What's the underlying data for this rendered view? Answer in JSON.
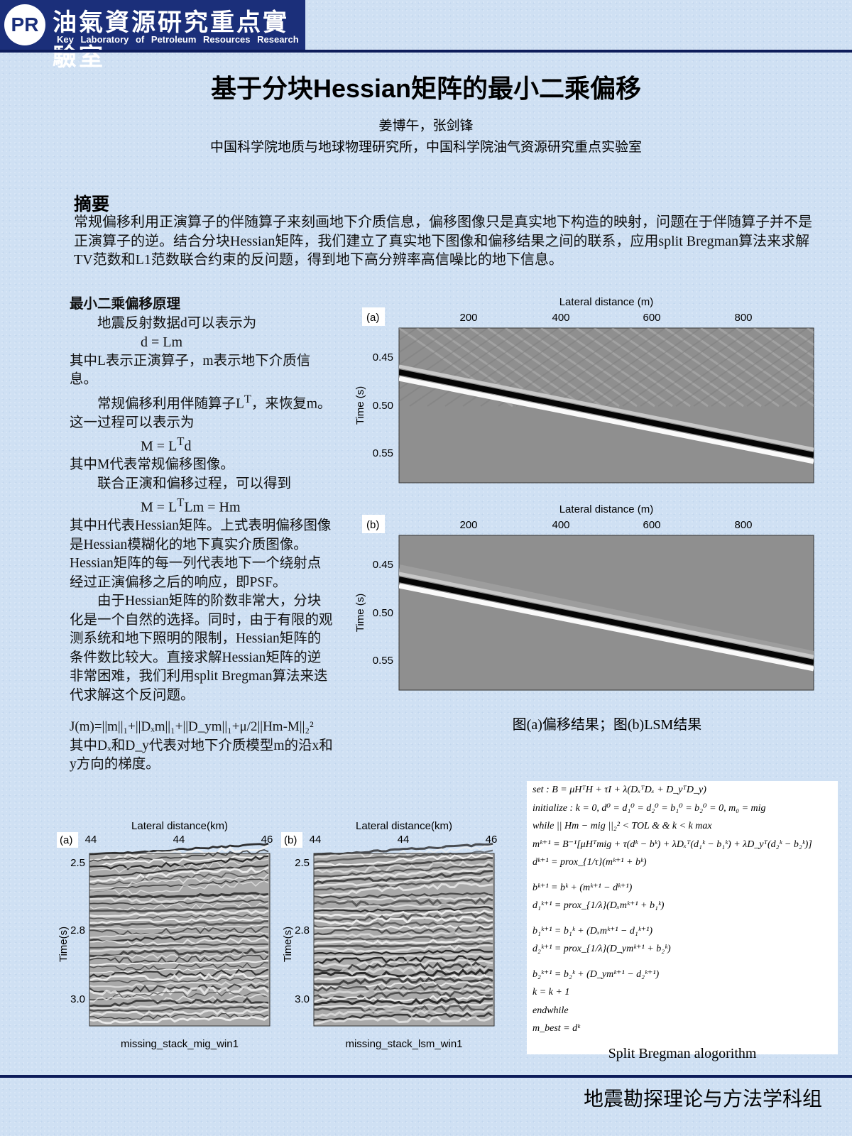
{
  "header": {
    "logo": "PR",
    "lab_cn": "油氣資源研究重点實驗室",
    "lab_en": "Key Laboratory of Petroleum Resources Research"
  },
  "title": "基于分块Hessian矩阵的最小二乘偏移",
  "authors": "姜博午，张剑锋",
  "affiliation": "中国科学院地质与地球物理研究所，中国科学院油气资源研究重点实验室",
  "abstract": {
    "heading": "摘要",
    "text": "常规偏移利用正演算子的伴随算子来刻画地下介质信息，偏移图像只是真实地下构造的映射，问题在于伴随算子并不是正演算子的逆。结合分块Hessian矩阵，我们建立了真实地下图像和偏移结果之间的联系，应用split Bregman算法来求解TV范数和L1范数联合约束的反问题，得到地下高分辨率高信噪比的地下信息。"
  },
  "principle": {
    "heading": "最小二乘偏移原理",
    "p1": "地震反射数据d可以表示为",
    "eq1": "d = Lm",
    "p2": "其中L表示正演算子，m表示地下介质信息。",
    "p3": [
      "常规偏移利用伴随算子L",
      "T",
      "，来恢复m。这一过程可以表示为"
    ],
    "eq2": [
      "M = L",
      "T",
      "d"
    ],
    "p4": "其中M代表常规偏移图像。",
    "p5": "联合正演和偏移过程，可以得到",
    "eq3": [
      "M = L",
      "T",
      "Lm = Hm"
    ],
    "p6": "其中H代表Hessian矩阵。上式表明偏移图像是Hessian模糊化的地下真实介质图像。Hessian矩阵的每一列代表地下一个绕射点经过正演偏移之后的响应，即PSF。",
    "p7": "由于Hessian矩阵的阶数非常大，分块化是一个自然的选择。同时，由于有限的观测系统和地下照明的限制，Hessian矩阵的条件数比较大。直接求解Hessian矩阵的逆非常困难，我们利用split Bregman算法来迭代求解这个反问题。",
    "objective": "J(m)=||m||₁+||Dₓm||₁+||D_ym||₁+μ/2||Hm-M||₂²",
    "p8": "其中Dₓ和D_y代表对地下介质模型m的沿x和y方向的梯度。"
  },
  "figure1": {
    "panels": [
      {
        "label": "(a)",
        "xlabel": "Lateral distance (m)",
        "ylabel": "Time (s)",
        "xticks": [
          "200",
          "400",
          "600",
          "800"
        ],
        "yticks": [
          "0.45",
          "0.50",
          "0.55"
        ]
      },
      {
        "label": "(b)",
        "xlabel": "Lateral distance (m)",
        "ylabel": "Time (s)",
        "xticks": [
          "200",
          "400",
          "600",
          "800"
        ],
        "yticks": [
          "0.45",
          "0.50",
          "0.55"
        ]
      }
    ],
    "caption": "图(a)偏移结果；图(b)LSM结果"
  },
  "figure2": {
    "panels": [
      {
        "label": "(a)",
        "xlabel": "Lateral distance(km)",
        "ylabel": "Time(s)",
        "xticks": [
          "44",
          "44",
          "46"
        ],
        "yticks": [
          "2.5",
          "2.8",
          "3.0"
        ],
        "caption": "missing_stack_mig_win1"
      },
      {
        "label": "(b)",
        "xlabel": "Lateral distance(km)",
        "ylabel": "Time(s)",
        "xticks": [
          "44",
          "44",
          "46"
        ],
        "yticks": [
          "2.5",
          "2.8",
          "3.0"
        ],
        "caption": "missing_stack_lsm_win1"
      }
    ]
  },
  "algorithm": {
    "lines": [
      "set : B = μHᵀH + τI + λ(DₓᵀDₓ + D_yᵀD_y)",
      "initialize : k = 0, d⁰ = d₁⁰ = d₂⁰ = b₁⁰ = b₂⁰ = 0, m₀ = mig",
      "while || Hm − mig ||₂² < TOL & & k < k max",
      "mᵏ⁺¹ = B⁻¹[μHᵀmig + τ(dᵏ − bᵏ) + λDₓᵀ(d₁ᵏ − b₁ᵏ) + λD_yᵀ(d₂ᵏ − b₂ᵏ)]",
      "dᵏ⁺¹ = prox_{1/τ}(mᵏ⁺¹ + bᵏ)",
      "bᵏ⁺¹ = bᵏ + (mᵏ⁺¹ − dᵏ⁺¹)",
      "d₁ᵏ⁺¹ = prox_{1/λ}(Dₓmᵏ⁺¹ + b₁ᵏ)",
      "b₁ᵏ⁺¹ = b₁ᵏ + (Dₓmᵏ⁺¹ − d₁ᵏ⁺¹)",
      "d₂ᵏ⁺¹ = prox_{1/λ}(D_ymᵏ⁺¹ + b₂ᵏ)",
      "b₂ᵏ⁺¹ = b₂ᵏ + (D_ymᵏ⁺¹ − d₂ᵏ⁺¹)",
      "k = k + 1",
      "endwhile",
      "m_best = dᵏ"
    ],
    "caption": "Split Bregman alogorithm"
  },
  "footer": "地震勘探理论与方法学科组"
}
